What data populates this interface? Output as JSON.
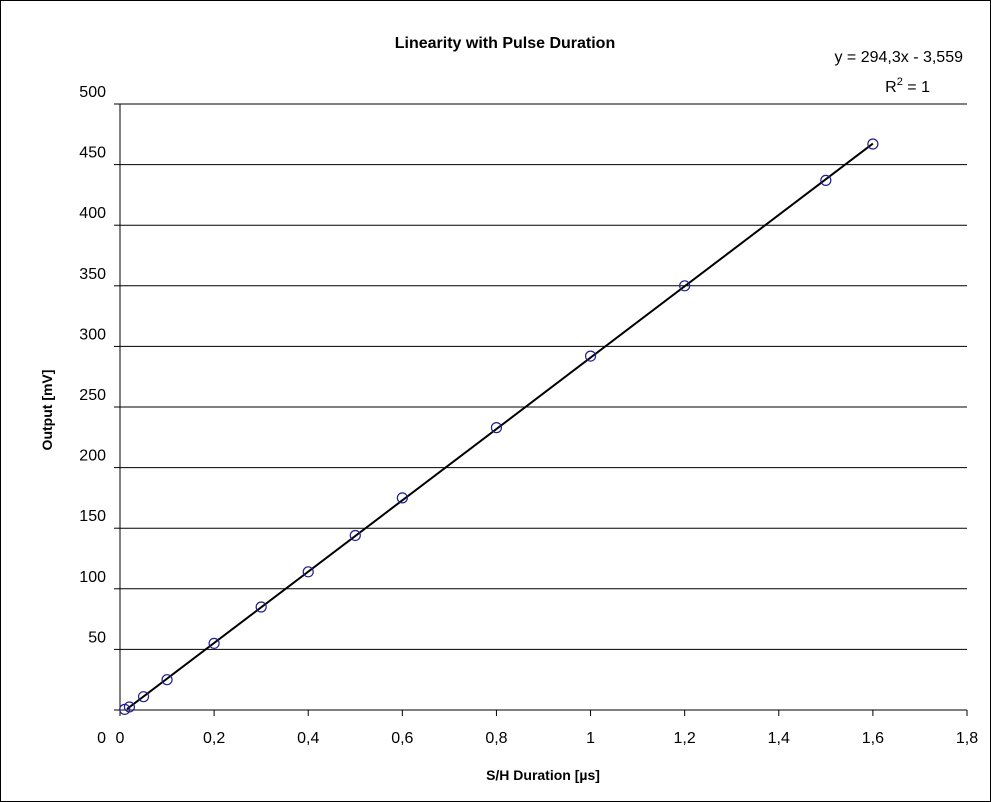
{
  "chart_data": {
    "type": "scatter",
    "title": "Linearity with Pulse Duration",
    "xlabel": "S/H Duration [µs]",
    "ylabel": "Output [mV]",
    "xlim": [
      0,
      1.8
    ],
    "ylim": [
      0,
      500
    ],
    "x_ticks": [
      "0",
      "0,2",
      "0,4",
      "0,6",
      "0,8",
      "1",
      "1,2",
      "1,4",
      "1,6",
      "1,8"
    ],
    "y_ticks": [
      "0",
      "50",
      "100",
      "150",
      "200",
      "250",
      "300",
      "350",
      "400",
      "450",
      "500"
    ],
    "grid": "horizontal",
    "series": [
      {
        "marker": "open-circle",
        "color": "#1f1f8f",
        "points": [
          {
            "x": 0.01,
            "y": 0.5
          },
          {
            "x": 0.02,
            "y": 2.5
          },
          {
            "x": 0.05,
            "y": 11
          },
          {
            "x": 0.1,
            "y": 25
          },
          {
            "x": 0.2,
            "y": 55
          },
          {
            "x": 0.3,
            "y": 85
          },
          {
            "x": 0.4,
            "y": 114
          },
          {
            "x": 0.5,
            "y": 144
          },
          {
            "x": 0.6,
            "y": 175
          },
          {
            "x": 0.8,
            "y": 233
          },
          {
            "x": 1.0,
            "y": 292
          },
          {
            "x": 1.2,
            "y": 350
          },
          {
            "x": 1.5,
            "y": 437
          },
          {
            "x": 1.6,
            "y": 467
          }
        ]
      }
    ],
    "trendline": {
      "type": "linear",
      "slope": 294.3,
      "intercept": -3.559,
      "equation": "y = 294,3x - 3,559",
      "r2_label_base": "R",
      "r2_label_sup": "2",
      "r2_label_value": " = 1",
      "color": "#000000"
    }
  }
}
